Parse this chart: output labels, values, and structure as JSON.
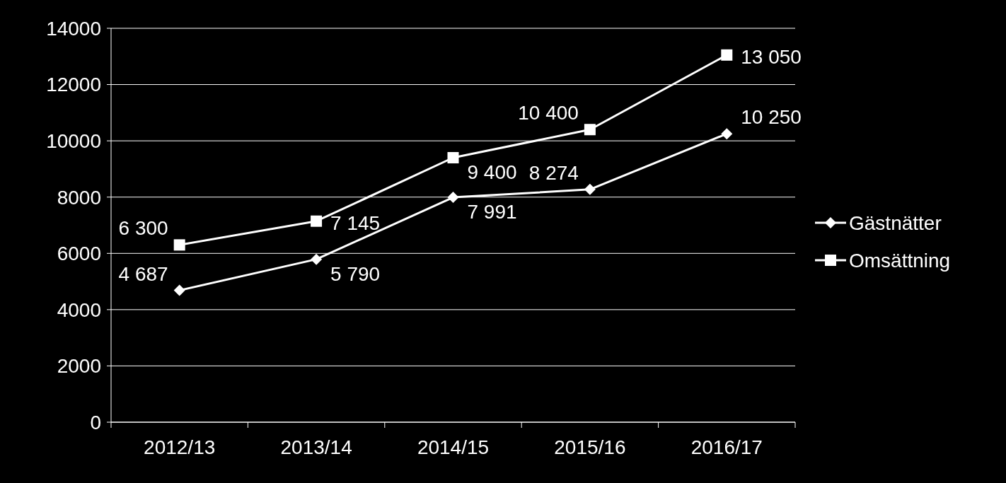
{
  "chart_data": {
    "type": "line",
    "categories": [
      "2012/13",
      "2013/14",
      "2014/15",
      "2015/16",
      "2016/17"
    ],
    "series": [
      {
        "name": "Gästnätter",
        "color": "#ffffff",
        "marker": "diamond",
        "values": [
          4687,
          5790,
          7991,
          8274,
          10250
        ],
        "value_labels": [
          "4 687",
          "5 790",
          "7 991",
          "8 274",
          "10 250"
        ]
      },
      {
        "name": "Omsättning",
        "color": "#ffffff",
        "marker": "square",
        "values": [
          6300,
          7145,
          9400,
          10400,
          13050
        ],
        "value_labels": [
          "6 300",
          "7 145",
          "9 400",
          "10 400",
          "13 050"
        ]
      }
    ],
    "ylim": [
      0,
      14000
    ],
    "yticks": [
      0,
      2000,
      4000,
      6000,
      8000,
      10000,
      12000,
      14000
    ],
    "grid": "y",
    "legend": "right"
  }
}
